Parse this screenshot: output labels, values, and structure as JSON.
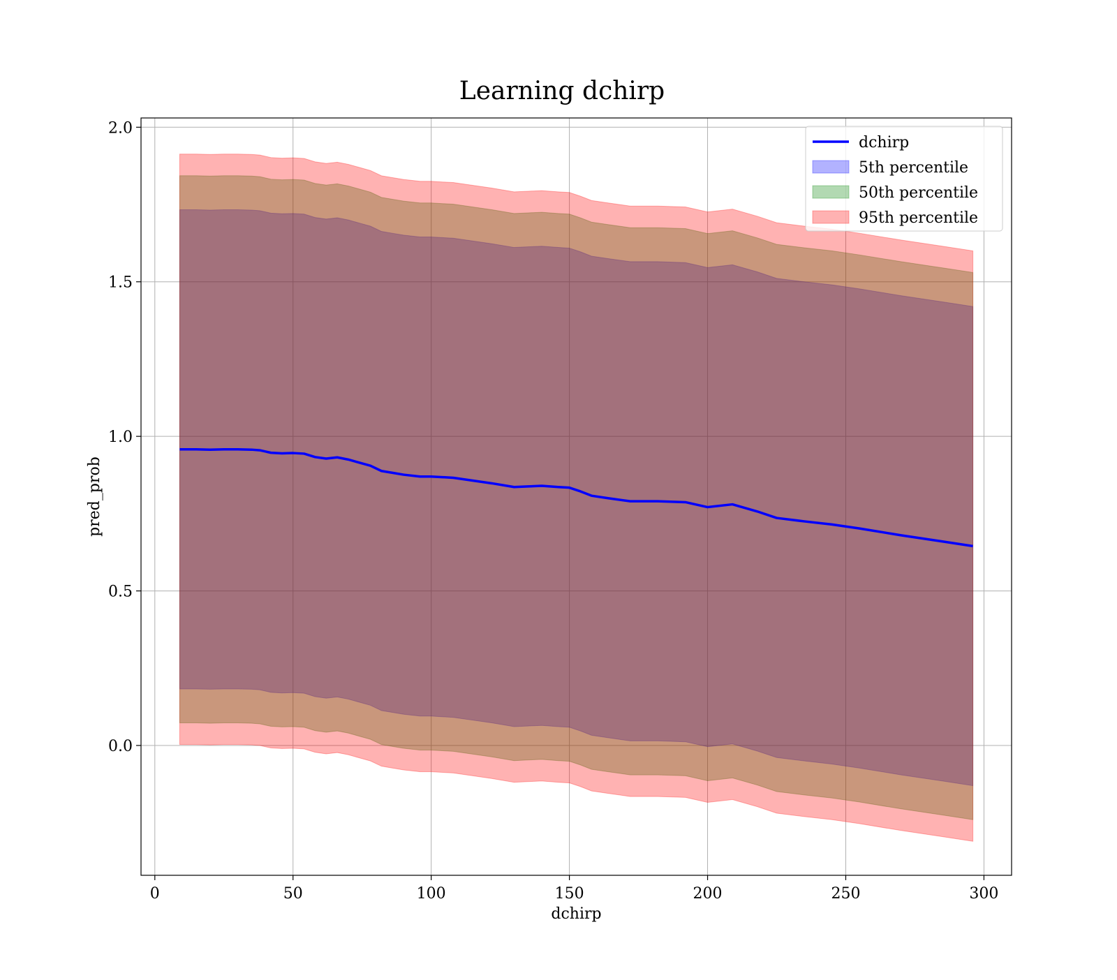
{
  "chart_data": {
    "type": "line",
    "title": "Learning dchirp",
    "xlabel": "dchirp",
    "ylabel": "pred_prob",
    "xlim": [
      -5,
      310
    ],
    "ylim": [
      -0.42,
      2.03
    ],
    "x_ticks": [
      0,
      50,
      100,
      150,
      200,
      250,
      300
    ],
    "x_tick_labels": [
      "0",
      "50",
      "100",
      "150",
      "200",
      "250",
      "300"
    ],
    "y_ticks": [
      0.0,
      0.5,
      1.0,
      1.5,
      2.0
    ],
    "y_tick_labels": [
      "0.0",
      "0.5",
      "1.0",
      "1.5",
      "2.0"
    ],
    "grid": true,
    "legend_position": "top-right",
    "x": [
      9,
      15,
      20,
      25,
      30,
      35,
      38,
      42,
      46,
      50,
      54,
      58,
      62,
      66,
      70,
      74,
      78,
      82,
      86,
      90,
      96,
      100,
      108,
      115,
      122,
      130,
      135,
      140,
      146,
      150,
      154,
      158,
      164,
      172,
      182,
      192,
      200,
      209,
      218,
      225,
      235,
      245,
      255,
      270,
      285,
      296
    ],
    "series": [
      {
        "name": "dchirp",
        "kind": "line",
        "color": "#0000ff",
        "values": [
          0.958,
          0.958,
          0.957,
          0.958,
          0.958,
          0.957,
          0.955,
          0.947,
          0.945,
          0.946,
          0.944,
          0.933,
          0.928,
          0.932,
          0.925,
          0.915,
          0.905,
          0.888,
          0.882,
          0.876,
          0.87,
          0.87,
          0.866,
          0.857,
          0.848,
          0.836,
          0.838,
          0.84,
          0.836,
          0.834,
          0.822,
          0.808,
          0.8,
          0.79,
          0.79,
          0.787,
          0.771,
          0.78,
          0.757,
          0.736,
          0.725,
          0.715,
          0.702,
          0.68,
          0.66,
          0.645
        ]
      },
      {
        "name": "5th percentile",
        "kind": "band",
        "color": "#0000ff",
        "lower": [
          0.183,
          0.183,
          0.182,
          0.183,
          0.183,
          0.182,
          0.18,
          0.172,
          0.17,
          0.171,
          0.169,
          0.158,
          0.153,
          0.157,
          0.15,
          0.14,
          0.13,
          0.113,
          0.107,
          0.101,
          0.095,
          0.095,
          0.091,
          0.082,
          0.073,
          0.061,
          0.063,
          0.065,
          0.061,
          0.059,
          0.047,
          0.033,
          0.025,
          0.015,
          0.015,
          0.012,
          -0.004,
          0.005,
          -0.018,
          -0.039,
          -0.05,
          -0.06,
          -0.073,
          -0.095,
          -0.115,
          -0.13
        ],
        "upper": [
          1.733,
          1.733,
          1.732,
          1.733,
          1.733,
          1.732,
          1.73,
          1.722,
          1.72,
          1.721,
          1.719,
          1.708,
          1.703,
          1.707,
          1.7,
          1.69,
          1.68,
          1.663,
          1.657,
          1.651,
          1.645,
          1.645,
          1.641,
          1.632,
          1.623,
          1.611,
          1.613,
          1.615,
          1.611,
          1.609,
          1.597,
          1.583,
          1.575,
          1.565,
          1.565,
          1.562,
          1.546,
          1.555,
          1.532,
          1.511,
          1.5,
          1.49,
          1.477,
          1.455,
          1.435,
          1.42
        ]
      },
      {
        "name": "50th percentile",
        "kind": "band",
        "color": "#008000",
        "lower": [
          0.073,
          0.073,
          0.072,
          0.073,
          0.073,
          0.072,
          0.07,
          0.062,
          0.06,
          0.061,
          0.059,
          0.048,
          0.043,
          0.047,
          0.04,
          0.03,
          0.02,
          0.003,
          -0.003,
          -0.009,
          -0.015,
          -0.015,
          -0.019,
          -0.028,
          -0.037,
          -0.049,
          -0.047,
          -0.045,
          -0.049,
          -0.051,
          -0.063,
          -0.077,
          -0.085,
          -0.095,
          -0.095,
          -0.098,
          -0.114,
          -0.105,
          -0.128,
          -0.149,
          -0.16,
          -0.17,
          -0.183,
          -0.205,
          -0.225,
          -0.24
        ],
        "upper": [
          1.843,
          1.843,
          1.842,
          1.843,
          1.843,
          1.842,
          1.84,
          1.832,
          1.83,
          1.831,
          1.829,
          1.818,
          1.813,
          1.817,
          1.81,
          1.8,
          1.79,
          1.773,
          1.767,
          1.761,
          1.755,
          1.755,
          1.751,
          1.742,
          1.733,
          1.721,
          1.723,
          1.725,
          1.721,
          1.719,
          1.707,
          1.693,
          1.685,
          1.675,
          1.675,
          1.672,
          1.656,
          1.665,
          1.642,
          1.621,
          1.61,
          1.6,
          1.587,
          1.565,
          1.545,
          1.53
        ]
      },
      {
        "name": "95th percentile",
        "kind": "band",
        "color": "#ff0000",
        "lower": [
          0.003,
          0.003,
          0.002,
          0.003,
          0.003,
          0.002,
          0.0,
          -0.008,
          -0.01,
          -0.009,
          -0.011,
          -0.022,
          -0.027,
          -0.023,
          -0.03,
          -0.04,
          -0.05,
          -0.067,
          -0.073,
          -0.079,
          -0.085,
          -0.085,
          -0.089,
          -0.098,
          -0.107,
          -0.119,
          -0.117,
          -0.115,
          -0.119,
          -0.121,
          -0.133,
          -0.147,
          -0.155,
          -0.165,
          -0.165,
          -0.168,
          -0.184,
          -0.175,
          -0.198,
          -0.219,
          -0.23,
          -0.24,
          -0.253,
          -0.275,
          -0.295,
          -0.31
        ],
        "upper": [
          1.913,
          1.913,
          1.912,
          1.913,
          1.913,
          1.912,
          1.91,
          1.902,
          1.9,
          1.901,
          1.899,
          1.888,
          1.883,
          1.887,
          1.88,
          1.87,
          1.86,
          1.843,
          1.837,
          1.831,
          1.825,
          1.825,
          1.821,
          1.812,
          1.803,
          1.791,
          1.793,
          1.795,
          1.791,
          1.789,
          1.777,
          1.763,
          1.755,
          1.745,
          1.745,
          1.742,
          1.726,
          1.735,
          1.712,
          1.691,
          1.68,
          1.67,
          1.657,
          1.635,
          1.615,
          1.6
        ]
      }
    ]
  }
}
